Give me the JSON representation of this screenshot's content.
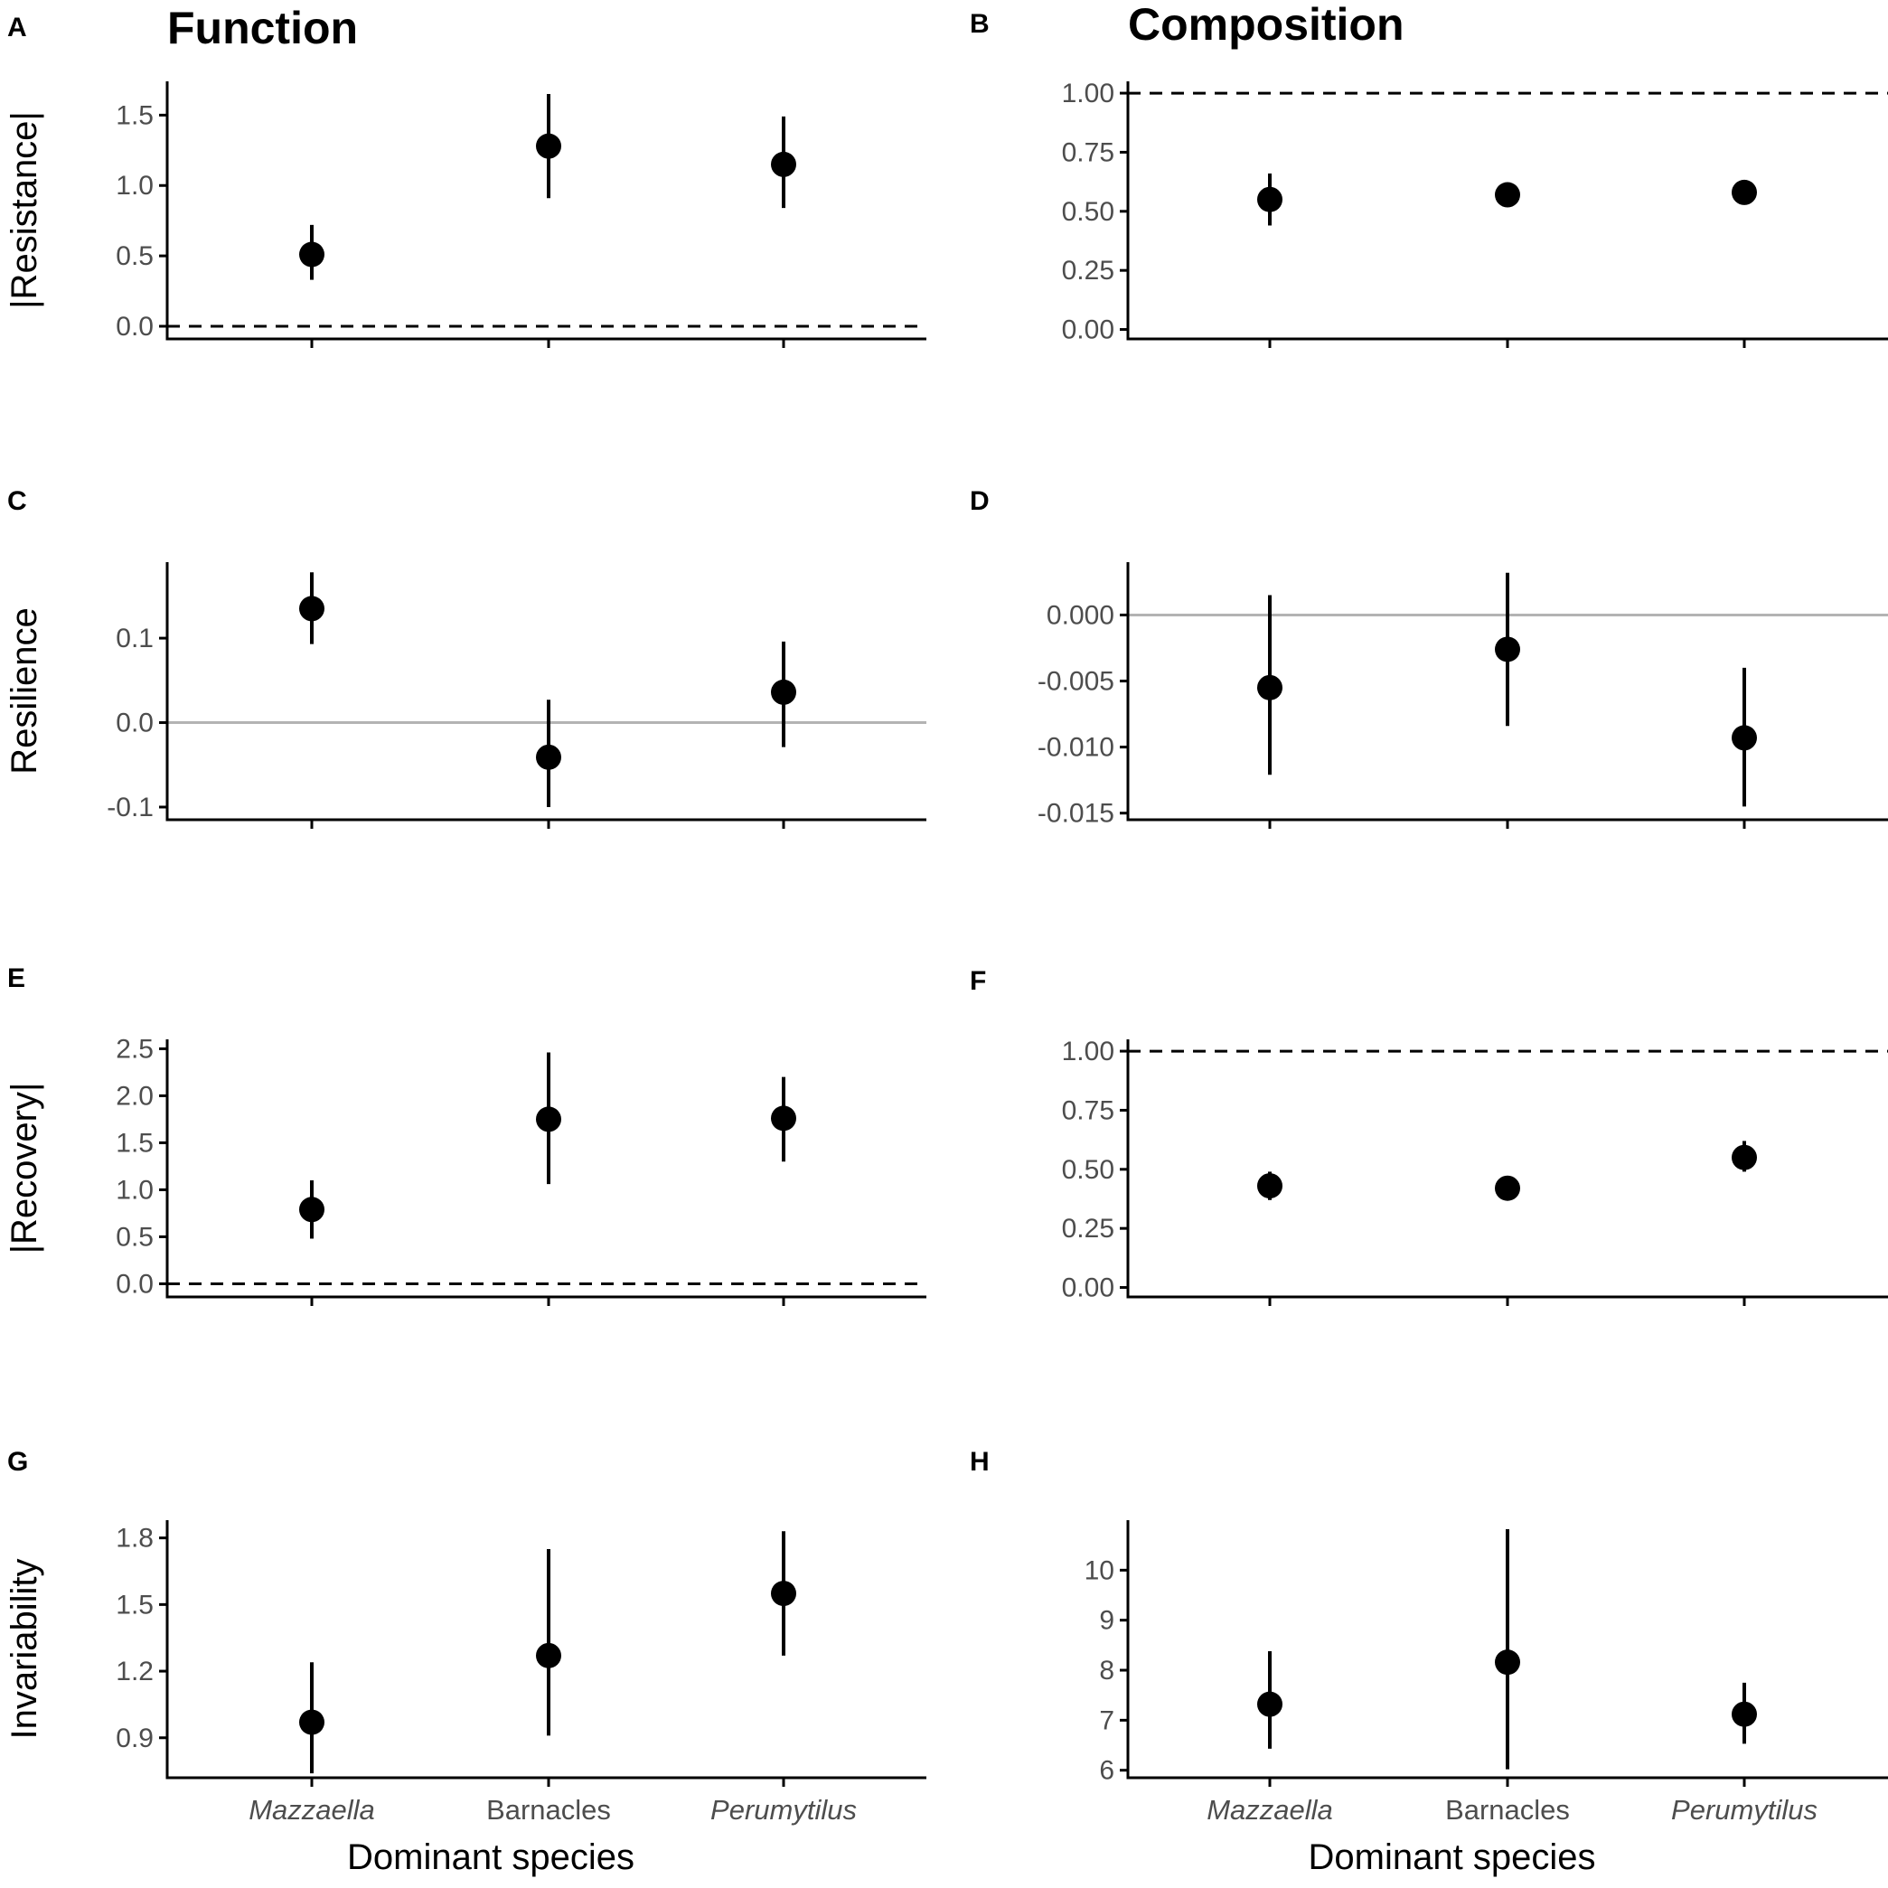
{
  "titles": {
    "function": "Function",
    "composition": "Composition"
  },
  "x_axis_title": "Dominant species",
  "categories": [
    "Mazzaella",
    "Barnacles",
    "Perumytilus"
  ],
  "category_italic": [
    true,
    false,
    true
  ],
  "colors": {
    "point": "#000000",
    "axis": "#000000",
    "tick_label": "#4d4d4d",
    "grey_reference": "#b3b3b3"
  },
  "chart_data": [
    {
      "panel": "A",
      "type": "scatter",
      "column": "Function",
      "ylabel": "|Resistance|",
      "ylim": [
        -0.09,
        1.74
      ],
      "ticks": [
        0.0,
        0.5,
        1.0,
        1.5
      ],
      "tick_labels": [
        "0.0",
        "0.5",
        "1.0",
        "1.5"
      ],
      "reference_line": {
        "y": 0,
        "style": "dashed"
      },
      "points": [
        {
          "category": "Mazzaella",
          "mean": 0.51,
          "lo": 0.33,
          "hi": 0.72
        },
        {
          "category": "Barnacles",
          "mean": 1.28,
          "lo": 0.91,
          "hi": 1.65
        },
        {
          "category": "Perumytilus",
          "mean": 1.15,
          "lo": 0.84,
          "hi": 1.49
        }
      ]
    },
    {
      "panel": "B",
      "type": "scatter",
      "column": "Composition",
      "ylabel": "",
      "ylim": [
        -0.04,
        1.05
      ],
      "ticks": [
        0.0,
        0.25,
        0.5,
        0.75,
        1.0
      ],
      "tick_labels": [
        "0.00",
        "0.25",
        "0.50",
        "0.75",
        "1.00"
      ],
      "reference_line": {
        "y": 1.0,
        "style": "dashed"
      },
      "points": [
        {
          "category": "Mazzaella",
          "mean": 0.55,
          "lo": 0.44,
          "hi": 0.66
        },
        {
          "category": "Barnacles",
          "mean": 0.57,
          "lo": 0.53,
          "hi": 0.6
        },
        {
          "category": "Perumytilus",
          "mean": 0.58,
          "lo": 0.55,
          "hi": 0.62
        }
      ]
    },
    {
      "panel": "C",
      "type": "scatter",
      "column": "Function",
      "ylabel": "Resilience",
      "ylim": [
        -0.115,
        0.19
      ],
      "ticks": [
        -0.1,
        0.0,
        0.1
      ],
      "tick_labels": [
        "-0.1",
        "0.0",
        "0.1"
      ],
      "reference_line": {
        "y": 0,
        "style": "solid-grey"
      },
      "points": [
        {
          "category": "Mazzaella",
          "mean": 0.135,
          "lo": 0.093,
          "hi": 0.178
        },
        {
          "category": "Barnacles",
          "mean": -0.041,
          "lo": -0.1,
          "hi": 0.027
        },
        {
          "category": "Perumytilus",
          "mean": 0.036,
          "lo": -0.029,
          "hi": 0.096
        }
      ]
    },
    {
      "panel": "D",
      "type": "scatter",
      "column": "Composition",
      "ylabel": "",
      "ylim": [
        -0.0155,
        0.004
      ],
      "ticks": [
        -0.015,
        -0.01,
        -0.005,
        0.0
      ],
      "tick_labels": [
        "-0.015",
        "-0.010",
        "-0.005",
        "0.000"
      ],
      "reference_line": {
        "y": 0,
        "style": "solid-grey"
      },
      "points": [
        {
          "category": "Mazzaella",
          "mean": -0.0055,
          "lo": -0.0121,
          "hi": 0.0015
        },
        {
          "category": "Barnacles",
          "mean": -0.0026,
          "lo": -0.0084,
          "hi": 0.0032
        },
        {
          "category": "Perumytilus",
          "mean": -0.0093,
          "lo": -0.0145,
          "hi": -0.004
        }
      ]
    },
    {
      "panel": "E",
      "type": "scatter",
      "column": "Function",
      "ylabel": "|Recovery|",
      "ylim": [
        -0.14,
        2.6
      ],
      "ticks": [
        0.0,
        0.5,
        1.0,
        1.5,
        2.0,
        2.5
      ],
      "tick_labels": [
        "0.0",
        "0.5",
        "1.0",
        "1.5",
        "2.0",
        "2.5"
      ],
      "reference_line": {
        "y": 0,
        "style": "dashed"
      },
      "points": [
        {
          "category": "Mazzaella",
          "mean": 0.79,
          "lo": 0.48,
          "hi": 1.1
        },
        {
          "category": "Barnacles",
          "mean": 1.75,
          "lo": 1.06,
          "hi": 2.46
        },
        {
          "category": "Perumytilus",
          "mean": 1.76,
          "lo": 1.3,
          "hi": 2.2
        }
      ]
    },
    {
      "panel": "F",
      "type": "scatter",
      "column": "Composition",
      "ylabel": "",
      "ylim": [
        -0.04,
        1.05
      ],
      "ticks": [
        0.0,
        0.25,
        0.5,
        0.75,
        1.0
      ],
      "tick_labels": [
        "0.00",
        "0.25",
        "0.50",
        "0.75",
        "1.00"
      ],
      "reference_line": {
        "y": 1.0,
        "style": "dashed"
      },
      "points": [
        {
          "category": "Mazzaella",
          "mean": 0.43,
          "lo": 0.37,
          "hi": 0.49
        },
        {
          "category": "Barnacles",
          "mean": 0.42,
          "lo": 0.4,
          "hi": 0.44
        },
        {
          "category": "Perumytilus",
          "mean": 0.55,
          "lo": 0.49,
          "hi": 0.62
        }
      ]
    },
    {
      "panel": "G",
      "type": "scatter",
      "column": "Function",
      "ylabel": "Invariability",
      "ylim": [
        0.72,
        1.88
      ],
      "ticks": [
        0.9,
        1.2,
        1.5,
        1.8
      ],
      "tick_labels": [
        "0.9",
        "1.2",
        "1.5",
        "1.8"
      ],
      "reference_line": null,
      "points": [
        {
          "category": "Mazzaella",
          "mean": 0.97,
          "lo": 0.74,
          "hi": 1.24
        },
        {
          "category": "Barnacles",
          "mean": 1.27,
          "lo": 0.91,
          "hi": 1.75
        },
        {
          "category": "Perumytilus",
          "mean": 1.55,
          "lo": 1.27,
          "hi": 1.83
        }
      ]
    },
    {
      "panel": "H",
      "type": "scatter",
      "column": "Composition",
      "ylabel": "",
      "ylim": [
        5.85,
        11.0
      ],
      "ticks": [
        6,
        7,
        8,
        9,
        10
      ],
      "tick_labels": [
        "6",
        "7",
        "8",
        "9",
        "10"
      ],
      "reference_line": null,
      "points": [
        {
          "category": "Mazzaella",
          "mean": 7.32,
          "lo": 6.43,
          "hi": 8.38
        },
        {
          "category": "Barnacles",
          "mean": 8.16,
          "lo": 6.02,
          "hi": 10.82
        },
        {
          "category": "Perumytilus",
          "mean": 7.12,
          "lo": 6.53,
          "hi": 7.75
        }
      ]
    }
  ]
}
